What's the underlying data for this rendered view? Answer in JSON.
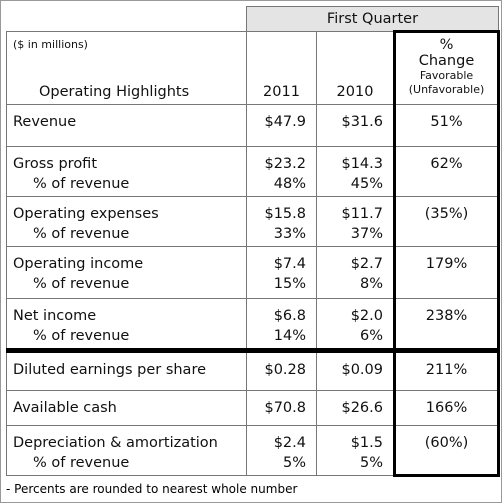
{
  "header": {
    "title": "First Quarter",
    "units": "($ in millions)",
    "label_column": "Operating Highlights",
    "columns": [
      "2011",
      "2010"
    ],
    "change": [
      "%",
      "Change",
      "Favorable",
      "(Unfavorable)"
    ]
  },
  "table": {
    "rows": [
      [
        [
          "Revenue"
        ],
        [
          "$47.9"
        ],
        [
          "$31.6"
        ],
        [
          "51%"
        ]
      ],
      [
        [
          "Gross profit",
          "% of revenue"
        ],
        [
          "$23.2",
          "48%"
        ],
        [
          "$14.3",
          "45%"
        ],
        [
          "62%"
        ]
      ],
      [
        [
          "Operating expenses",
          "% of revenue"
        ],
        [
          "$15.8",
          "33%"
        ],
        [
          "$11.7",
          "37%"
        ],
        [
          "(35%)"
        ]
      ],
      [
        [
          "Operating income",
          "% of revenue"
        ],
        [
          "$7.4",
          "15%"
        ],
        [
          "$2.7",
          "8%"
        ],
        [
          "179%"
        ]
      ],
      [
        [
          "Net income",
          "% of revenue"
        ],
        [
          "$6.8",
          "14%"
        ],
        [
          "$2.0",
          "6%"
        ],
        [
          "238%"
        ]
      ],
      [
        [
          "Diluted earnings per share"
        ],
        [
          "$0.28"
        ],
        [
          "$0.09"
        ],
        [
          "211%"
        ]
      ],
      [
        [
          "Available cash"
        ],
        [
          "$70.8"
        ],
        [
          "$26.6"
        ],
        [
          "166%"
        ]
      ],
      [
        [
          "Depreciation & amortization",
          "% of revenue"
        ],
        [
          "$2.4",
          "5%"
        ],
        [
          "$1.5",
          "5%"
        ],
        [
          "(60%)"
        ]
      ]
    ]
  },
  "footnote": "- Percents are rounded to nearest whole number"
}
